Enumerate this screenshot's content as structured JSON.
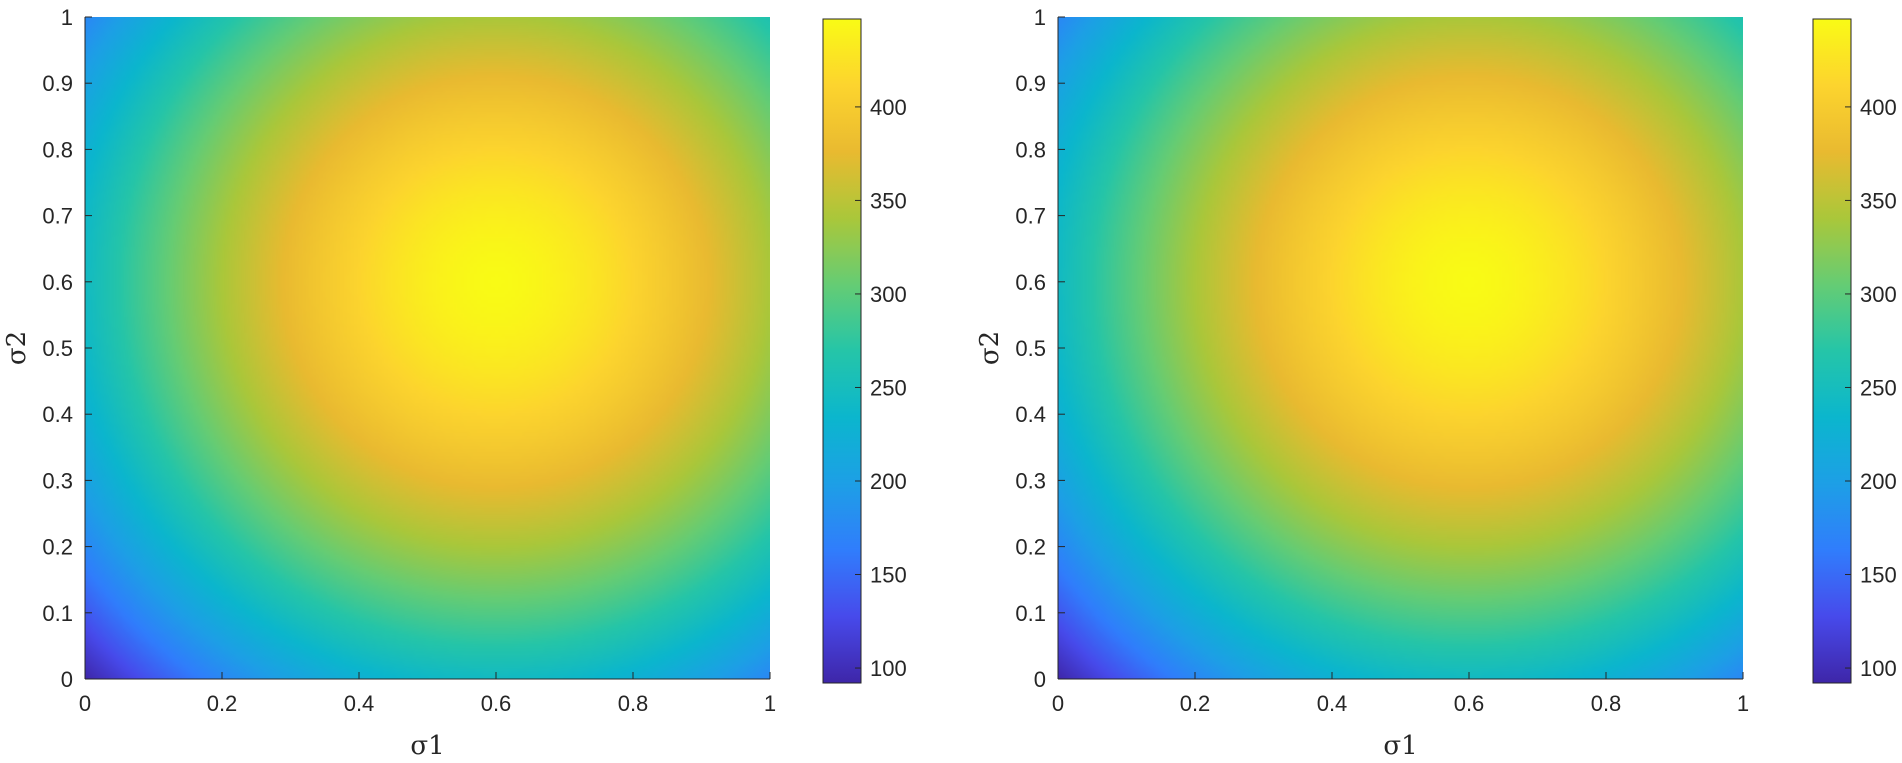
{
  "chart_data": [
    {
      "type": "heatmap",
      "title": "",
      "xlabel": "σ1",
      "ylabel": "σ2",
      "xlim": [
        0,
        1
      ],
      "ylim": [
        0,
        1
      ],
      "xticks": [
        "0",
        "0.2",
        "0.4",
        "0.6",
        "0.8",
        "1"
      ],
      "yticks": [
        "0",
        "0.1",
        "0.2",
        "0.3",
        "0.4",
        "0.5",
        "0.6",
        "0.7",
        "0.8",
        "0.9",
        "1"
      ],
      "colormap": "parula",
      "colorbar": {
        "range": [
          92,
          447
        ],
        "ticks": [
          "100",
          "150",
          "200",
          "250",
          "300",
          "350",
          "400"
        ]
      },
      "peak": {
        "x": 0.6,
        "y": 0.6,
        "value": 447
      },
      "corner_values": {
        "x0y0": 92,
        "x1y0": 228,
        "x0y1": 228,
        "x1y1": 320
      },
      "grid": false
    },
    {
      "type": "heatmap",
      "title": "",
      "xlabel": "σ1",
      "ylabel": "σ2",
      "xlim": [
        0,
        1
      ],
      "ylim": [
        0,
        1
      ],
      "xticks": [
        "0",
        "0.2",
        "0.4",
        "0.6",
        "0.8",
        "1"
      ],
      "yticks": [
        "0",
        "0.1",
        "0.2",
        "0.3",
        "0.4",
        "0.5",
        "0.6",
        "0.7",
        "0.8",
        "0.9",
        "1"
      ],
      "colormap": "parula",
      "colorbar": {
        "range": [
          92,
          447
        ],
        "ticks": [
          "100",
          "150",
          "200",
          "250",
          "300",
          "350",
          "400"
        ]
      },
      "peak": {
        "x": 0.6,
        "y": 0.6,
        "value": 447
      },
      "corner_values": {
        "x0y0": 92,
        "x1y0": 228,
        "x0y1": 228,
        "x1y1": 320
      },
      "grid": false
    }
  ]
}
